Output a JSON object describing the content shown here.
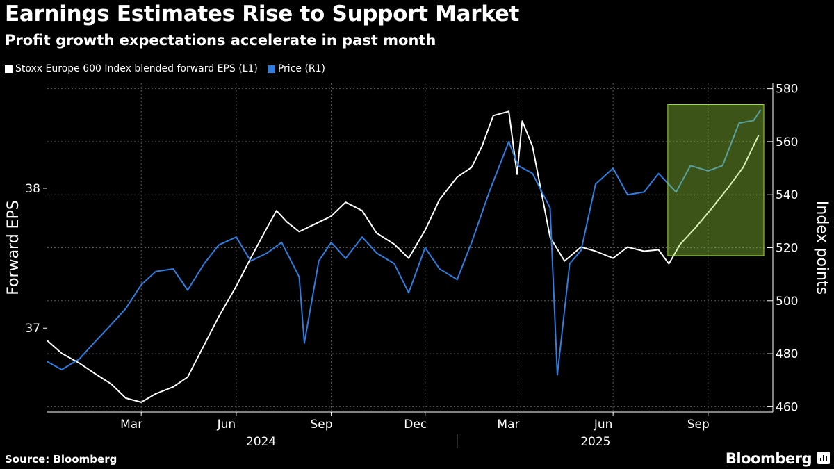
{
  "title": "Earnings Estimates Rise to Support Market",
  "subtitle": "Profit growth expectations accelerate in past month",
  "source": "Source: Bloomberg",
  "brand": "Bloomberg",
  "colors": {
    "eps": "#ffffff",
    "price": "#2e7ee0",
    "highlight": "#9edc3c",
    "grid": "#5a5a5a"
  },
  "chart_data": {
    "type": "line",
    "title": "Earnings Estimates Rise to Support Market",
    "subtitle": "Profit growth expectations accelerate in past month",
    "x_axis": {
      "range": [
        "2023-12-01",
        "2025-10-27"
      ],
      "month_ticks": [
        {
          "label": "Mar",
          "date": "2024-03-01"
        },
        {
          "label": "Jun",
          "date": "2024-06-01"
        },
        {
          "label": "Sep",
          "date": "2024-09-01"
        },
        {
          "label": "Dec",
          "date": "2024-12-01"
        },
        {
          "label": "Mar",
          "date": "2025-03-01"
        },
        {
          "label": "Jun",
          "date": "2025-06-01"
        },
        {
          "label": "Sep",
          "date": "2025-09-01"
        }
      ],
      "years": [
        {
          "label": "2024",
          "date": "2024-06-25"
        },
        {
          "label": "2025",
          "date": "2025-05-15"
        }
      ],
      "year_divider": "2025-01-01"
    },
    "y_left": {
      "label": "Forward EPS",
      "range": [
        36.4,
        38.75
      ],
      "ticks": [
        "37",
        "38"
      ]
    },
    "y_right": {
      "label": "Index points",
      "range": [
        458,
        582
      ],
      "ticks": [
        "460",
        "480",
        "500",
        "520",
        "540",
        "560",
        "580"
      ]
    },
    "highlight_region": {
      "x": [
        "2025-07-24",
        "2025-10-25"
      ],
      "y_right": [
        517,
        574
      ]
    },
    "grid": true,
    "legend_position": "top-left",
    "series": [
      {
        "name": "Stoxx Europe 600 Index blended forward EPS (L1)",
        "axis": "left",
        "points": [
          [
            "2023-12-01",
            36.91
          ],
          [
            "2023-12-15",
            36.82
          ],
          [
            "2024-01-01",
            36.75
          ],
          [
            "2024-01-15",
            36.68
          ],
          [
            "2024-02-01",
            36.6
          ],
          [
            "2024-02-15",
            36.5
          ],
          [
            "2024-03-01",
            36.47
          ],
          [
            "2024-03-15",
            36.53
          ],
          [
            "2024-04-01",
            36.58
          ],
          [
            "2024-04-15",
            36.65
          ],
          [
            "2024-05-01",
            36.88
          ],
          [
            "2024-05-15",
            37.08
          ],
          [
            "2024-06-01",
            37.3
          ],
          [
            "2024-06-15",
            37.5
          ],
          [
            "2024-07-01",
            37.72
          ],
          [
            "2024-07-10",
            37.84
          ],
          [
            "2024-07-20",
            37.76
          ],
          [
            "2024-08-01",
            37.69
          ],
          [
            "2024-08-15",
            37.74
          ],
          [
            "2024-09-01",
            37.8
          ],
          [
            "2024-09-15",
            37.9
          ],
          [
            "2024-10-01",
            37.84
          ],
          [
            "2024-10-15",
            37.68
          ],
          [
            "2024-11-01",
            37.6
          ],
          [
            "2024-11-15",
            37.5
          ],
          [
            "2024-12-01",
            37.7
          ],
          [
            "2024-12-15",
            37.92
          ],
          [
            "2025-01-01",
            38.08
          ],
          [
            "2025-01-15",
            38.15
          ],
          [
            "2025-01-25",
            38.3
          ],
          [
            "2025-02-05",
            38.52
          ],
          [
            "2025-02-20",
            38.55
          ],
          [
            "2025-02-28",
            38.1
          ],
          [
            "2025-03-05",
            38.48
          ],
          [
            "2025-03-15",
            38.3
          ],
          [
            "2025-04-01",
            37.65
          ],
          [
            "2025-04-15",
            37.48
          ],
          [
            "2025-05-01",
            37.58
          ],
          [
            "2025-05-15",
            37.55
          ],
          [
            "2025-06-01",
            37.5
          ],
          [
            "2025-06-15",
            37.58
          ],
          [
            "2025-07-01",
            37.55
          ],
          [
            "2025-07-15",
            37.56
          ],
          [
            "2025-07-25",
            37.46
          ],
          [
            "2025-08-05",
            37.6
          ],
          [
            "2025-08-20",
            37.72
          ],
          [
            "2025-09-05",
            37.86
          ],
          [
            "2025-09-20",
            38.0
          ],
          [
            "2025-10-05",
            38.15
          ],
          [
            "2025-10-20",
            38.38
          ]
        ]
      },
      {
        "name": "Price (R1)",
        "axis": "right",
        "points": [
          [
            "2023-12-01",
            477
          ],
          [
            "2023-12-15",
            474
          ],
          [
            "2024-01-01",
            478
          ],
          [
            "2024-01-15",
            484
          ],
          [
            "2024-02-01",
            491
          ],
          [
            "2024-02-15",
            497
          ],
          [
            "2024-03-01",
            506
          ],
          [
            "2024-03-15",
            511
          ],
          [
            "2024-04-01",
            512
          ],
          [
            "2024-04-15",
            504
          ],
          [
            "2024-05-01",
            514
          ],
          [
            "2024-05-15",
            521
          ],
          [
            "2024-06-01",
            524
          ],
          [
            "2024-06-15",
            515
          ],
          [
            "2024-07-01",
            518
          ],
          [
            "2024-07-15",
            522
          ],
          [
            "2024-08-01",
            509
          ],
          [
            "2024-08-06",
            484
          ],
          [
            "2024-08-20",
            515
          ],
          [
            "2024-09-01",
            522
          ],
          [
            "2024-09-15",
            516
          ],
          [
            "2024-10-01",
            524
          ],
          [
            "2024-10-15",
            518
          ],
          [
            "2024-11-01",
            514
          ],
          [
            "2024-11-15",
            503
          ],
          [
            "2024-12-01",
            520
          ],
          [
            "2024-12-15",
            512
          ],
          [
            "2025-01-01",
            508
          ],
          [
            "2025-01-15",
            522
          ],
          [
            "2025-02-01",
            541
          ],
          [
            "2025-02-20",
            560
          ],
          [
            "2025-03-01",
            551
          ],
          [
            "2025-03-15",
            548
          ],
          [
            "2025-04-01",
            535
          ],
          [
            "2025-04-08",
            472
          ],
          [
            "2025-04-20",
            514
          ],
          [
            "2025-05-01",
            519
          ],
          [
            "2025-05-15",
            544
          ],
          [
            "2025-06-01",
            550
          ],
          [
            "2025-06-15",
            540
          ],
          [
            "2025-07-01",
            541
          ],
          [
            "2025-07-15",
            548
          ],
          [
            "2025-08-01",
            541
          ],
          [
            "2025-08-15",
            551
          ],
          [
            "2025-09-01",
            549
          ],
          [
            "2025-09-15",
            551
          ],
          [
            "2025-10-01",
            567
          ],
          [
            "2025-10-15",
            568
          ],
          [
            "2025-10-22",
            572
          ]
        ]
      }
    ]
  }
}
